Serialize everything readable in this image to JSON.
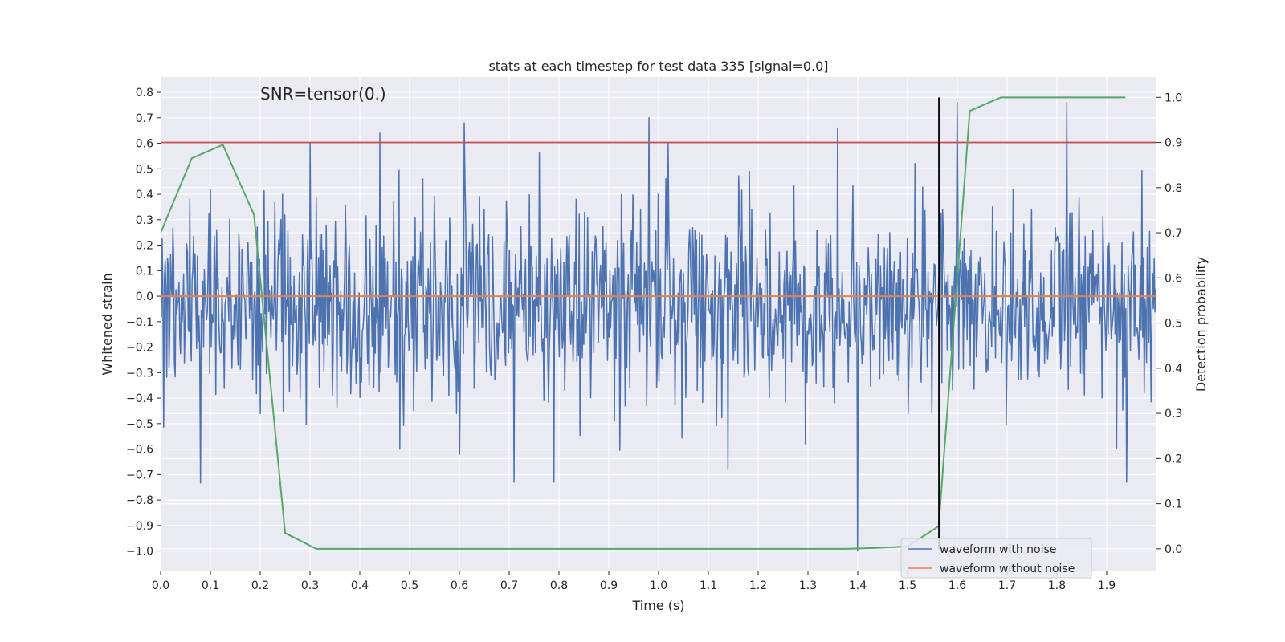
{
  "chart_data": {
    "type": "line",
    "title": "stats at each timestep for test data 335 [signal=0.0]",
    "xlabel": "Time (s)",
    "ylabel_left": "Whitened strain",
    "ylabel_right": "Detection probability",
    "annotation": "SNR=tensor(0.)",
    "xlim": [
      0.0,
      2.0
    ],
    "ylim_left": [
      -1.08,
      0.86
    ],
    "ylim_right": [
      -0.05,
      1.045
    ],
    "x_ticks": [
      "0.0",
      "0.1",
      "0.2",
      "0.3",
      "0.4",
      "0.5",
      "0.6",
      "0.7",
      "0.8",
      "0.9",
      "1.0",
      "1.1",
      "1.2",
      "1.3",
      "1.4",
      "1.5",
      "1.6",
      "1.7",
      "1.8",
      "1.9"
    ],
    "y_ticks_left": [
      "0.8",
      "0.7",
      "0.6",
      "0.5",
      "0.4",
      "0.3",
      "0.2",
      "0.1",
      "0.0",
      "-0.1",
      "-0.2",
      "-0.3",
      "-0.4",
      "-0.5",
      "-0.6",
      "-0.7",
      "-0.8",
      "-0.9",
      "-1.0"
    ],
    "y_ticks_right": [
      "1.0",
      "0.9",
      "0.8",
      "0.7",
      "0.6",
      "0.5",
      "0.4",
      "0.3",
      "0.2",
      "0.1",
      "0.0"
    ],
    "grid": true,
    "legend_position": "lower-right",
    "colors": {
      "background": "#eaeaf2",
      "grid": "#ffffff",
      "noisy": "#4c72b0",
      "clean": "#dd8452",
      "probability": "#55a868",
      "threshold": "#c44e52",
      "marker": "#000000"
    },
    "series": [
      {
        "name": "waveform with noise",
        "axis": "left",
        "style": "dense-noise",
        "x_range": [
          0.0,
          2.0
        ],
        "sample_count": 1300,
        "mean": -0.03,
        "std": 0.19,
        "spikes": [
          {
            "x": 0.98,
            "y": 0.7
          },
          {
            "x": 1.6,
            "y": 0.76
          },
          {
            "x": 1.82,
            "y": 0.76
          },
          {
            "x": 1.4,
            "y": -1.0
          },
          {
            "x": 0.61,
            "y": 0.68
          },
          {
            "x": 0.44,
            "y": 0.64
          },
          {
            "x": 1.36,
            "y": 0.66
          },
          {
            "x": 0.71,
            "y": -0.73
          },
          {
            "x": 0.79,
            "y": -0.73
          },
          {
            "x": 1.94,
            "y": -0.73
          },
          {
            "x": 0.3,
            "y": 0.6
          },
          {
            "x": 1.02,
            "y": 0.6
          },
          {
            "x": 0.48,
            "y": -0.6
          },
          {
            "x": 0.6,
            "y": -0.62
          },
          {
            "x": 1.14,
            "y": -0.68
          }
        ]
      },
      {
        "name": "waveform without noise",
        "axis": "left",
        "x": [
          0.0,
          2.0
        ],
        "y": [
          0.0,
          0.0
        ]
      },
      {
        "axis": "right",
        "x": [
          0.0,
          0.0625,
          0.125,
          0.1875,
          0.25,
          0.3125,
          0.375,
          1.375,
          1.4375,
          1.5,
          1.5625,
          1.625,
          1.6875,
          1.75,
          1.8125,
          1.875,
          1.9375
        ],
        "y": [
          0.7,
          0.865,
          0.895,
          0.74,
          0.035,
          0.0,
          0.0,
          0.0,
          0.002,
          0.005,
          0.05,
          0.97,
          1.0,
          1.0,
          1.0,
          1.0,
          1.0
        ]
      }
    ],
    "threshold_line": {
      "axis": "right",
      "y": 0.9
    },
    "vertical_line": {
      "x": 1.563,
      "y_range": [
        0.0,
        1.0
      ],
      "axis": "right"
    }
  }
}
